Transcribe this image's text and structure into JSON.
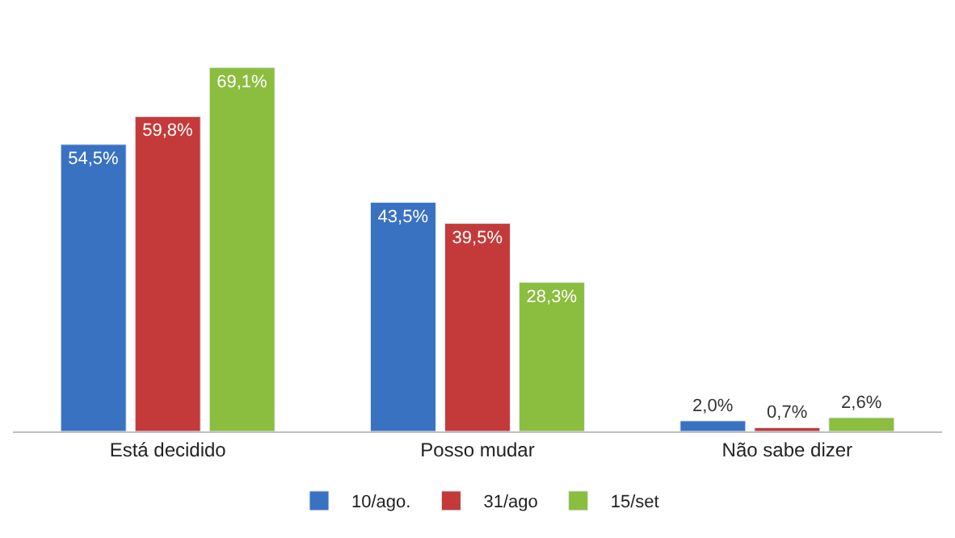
{
  "chart_data": {
    "type": "bar",
    "categories": [
      "Está decidido",
      "Posso mudar",
      "Não sabe dizer"
    ],
    "series": [
      {
        "name": "10/ago.",
        "color": "#3a72c2",
        "values": [
          54.5,
          43.5,
          2.0
        ],
        "value_labels": [
          "54,5%",
          "43,5%",
          "2,0%"
        ]
      },
      {
        "name": "31/ago",
        "color": "#c43a3a",
        "values": [
          59.8,
          39.5,
          0.7
        ],
        "value_labels": [
          "59,8%",
          "39,5%",
          "0,7%"
        ]
      },
      {
        "name": "15/set",
        "color": "#8bbd3e",
        "values": [
          69.1,
          28.3,
          2.6
        ],
        "value_labels": [
          "69,1%",
          "28,3%",
          "2,6%"
        ]
      }
    ],
    "legend": "bottom"
  }
}
